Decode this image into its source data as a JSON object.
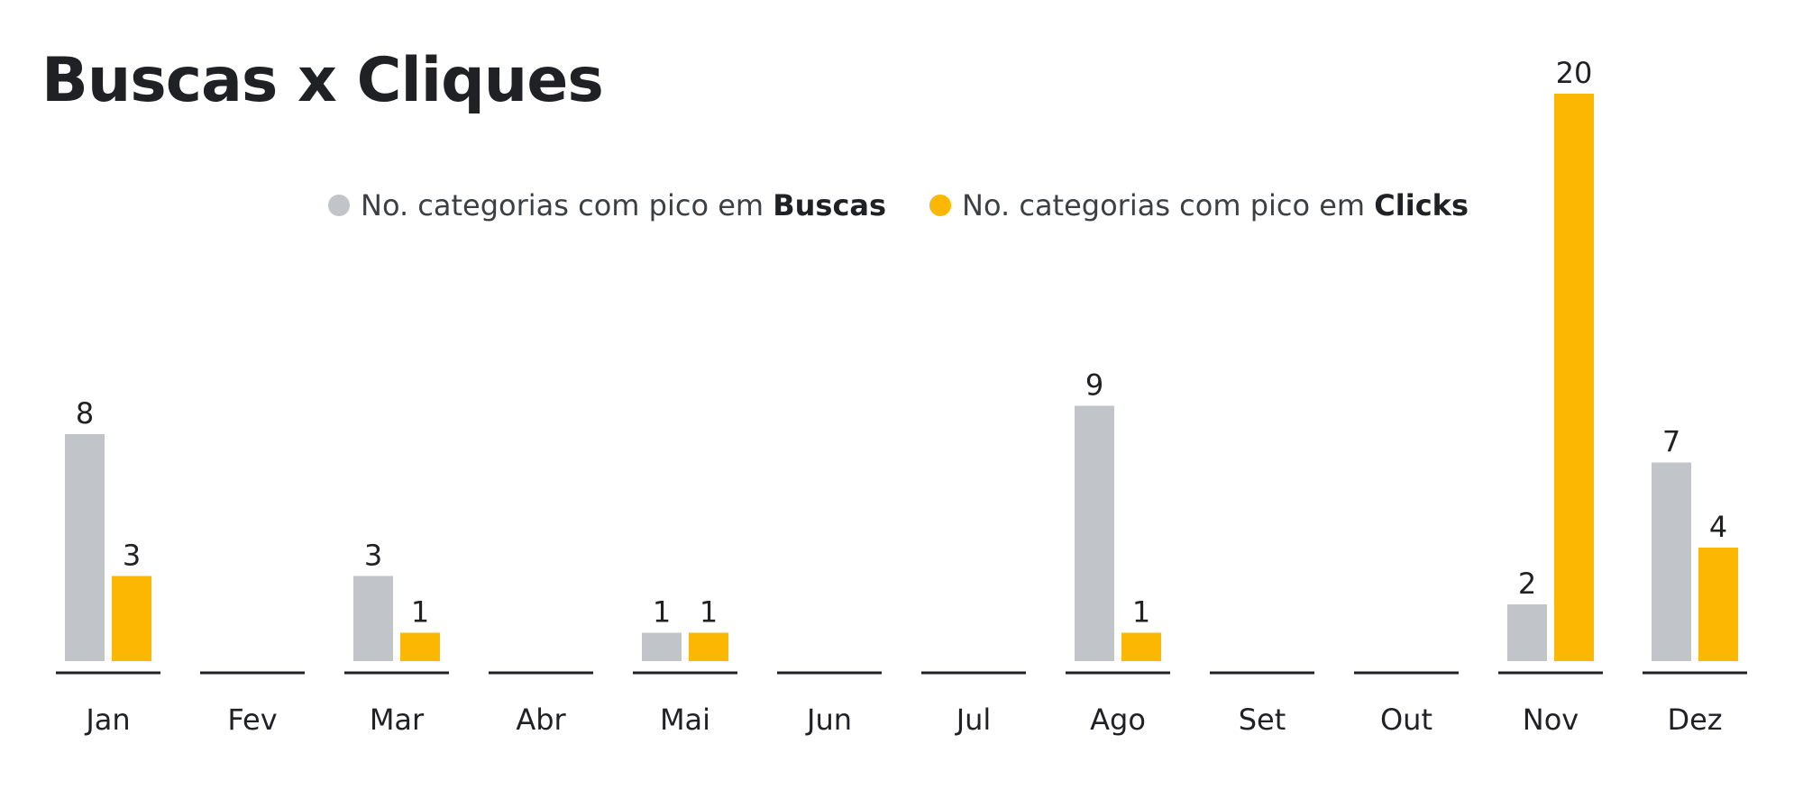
{
  "chart_data": {
    "type": "bar",
    "title": "Buscas x Cliques",
    "categories": [
      "Jan",
      "Fev",
      "Mar",
      "Abr",
      "Mai",
      "Jun",
      "Jul",
      "Ago",
      "Set",
      "Out",
      "Nov",
      "Dez"
    ],
    "series": [
      {
        "name": "No. categorias com pico em Buscas",
        "name_prefix": "No. categorias com pico em ",
        "name_emphasis": "Buscas",
        "color": "#c1c4c8",
        "values": [
          8,
          0,
          3,
          0,
          1,
          0,
          0,
          9,
          0,
          0,
          2,
          7
        ]
      },
      {
        "name": "No. categorias com pico em Clicks",
        "name_prefix": "No. categorias com pico em ",
        "name_emphasis": "Clicks",
        "color": "#fbb702",
        "values": [
          3,
          0,
          1,
          0,
          1,
          0,
          0,
          1,
          0,
          0,
          20,
          4
        ]
      }
    ],
    "ylim": [
      0,
      20
    ],
    "grid": false,
    "legend_position": "top-center",
    "baseline_color": "#202124"
  }
}
